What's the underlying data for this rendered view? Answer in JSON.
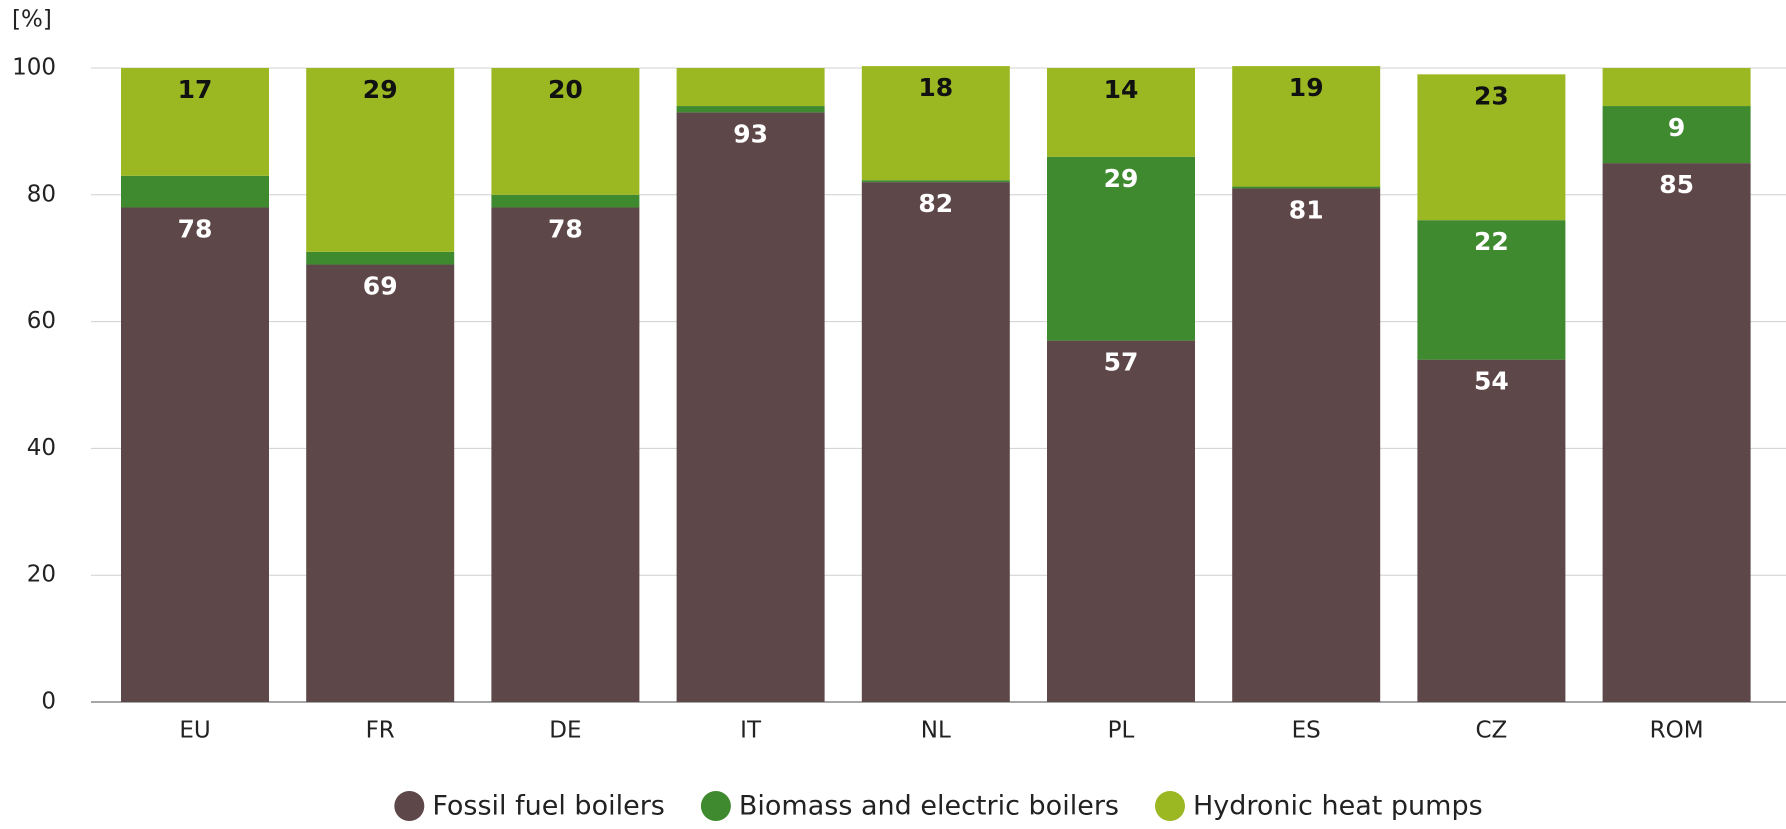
{
  "chart_data": {
    "type": "stacked_bar",
    "y_label": "[%]",
    "categories": [
      "EU",
      "FR",
      "DE",
      "IT",
      "NL",
      "PL",
      "ES",
      "CZ",
      "ROM"
    ],
    "series": [
      {
        "name": "Fossil fuel boilers",
        "color": "#5e4748",
        "label_color": "#ffffff",
        "values": [
          78,
          69,
          78,
          93,
          82,
          57,
          81,
          54,
          85
        ],
        "value_labels": [
          "78",
          "69",
          "78",
          "93",
          "82",
          "57",
          "81",
          "54",
          "85"
        ]
      },
      {
        "name": "Biomass and electric boilers",
        "color": "#3f8a2e",
        "label_color": "#ffffff",
        "values": [
          5,
          2,
          2,
          1,
          0.3,
          29,
          0.3,
          22,
          9
        ],
        "value_labels": [
          null,
          null,
          null,
          null,
          null,
          "29",
          null,
          "22",
          "9"
        ]
      },
      {
        "name": "Hydronic heat pumps",
        "color": "#9bb823",
        "label_color": "#111111",
        "values": [
          17,
          29,
          20,
          6,
          18,
          14,
          19,
          23,
          6
        ],
        "value_labels": [
          "17",
          "29",
          "20",
          null,
          "18",
          "14",
          "19",
          "23",
          null
        ]
      }
    ],
    "ylim": [
      0,
      100
    ],
    "yticks": [
      0,
      20,
      40,
      60,
      80,
      100
    ],
    "grid": true,
    "legend": "bottom"
  }
}
